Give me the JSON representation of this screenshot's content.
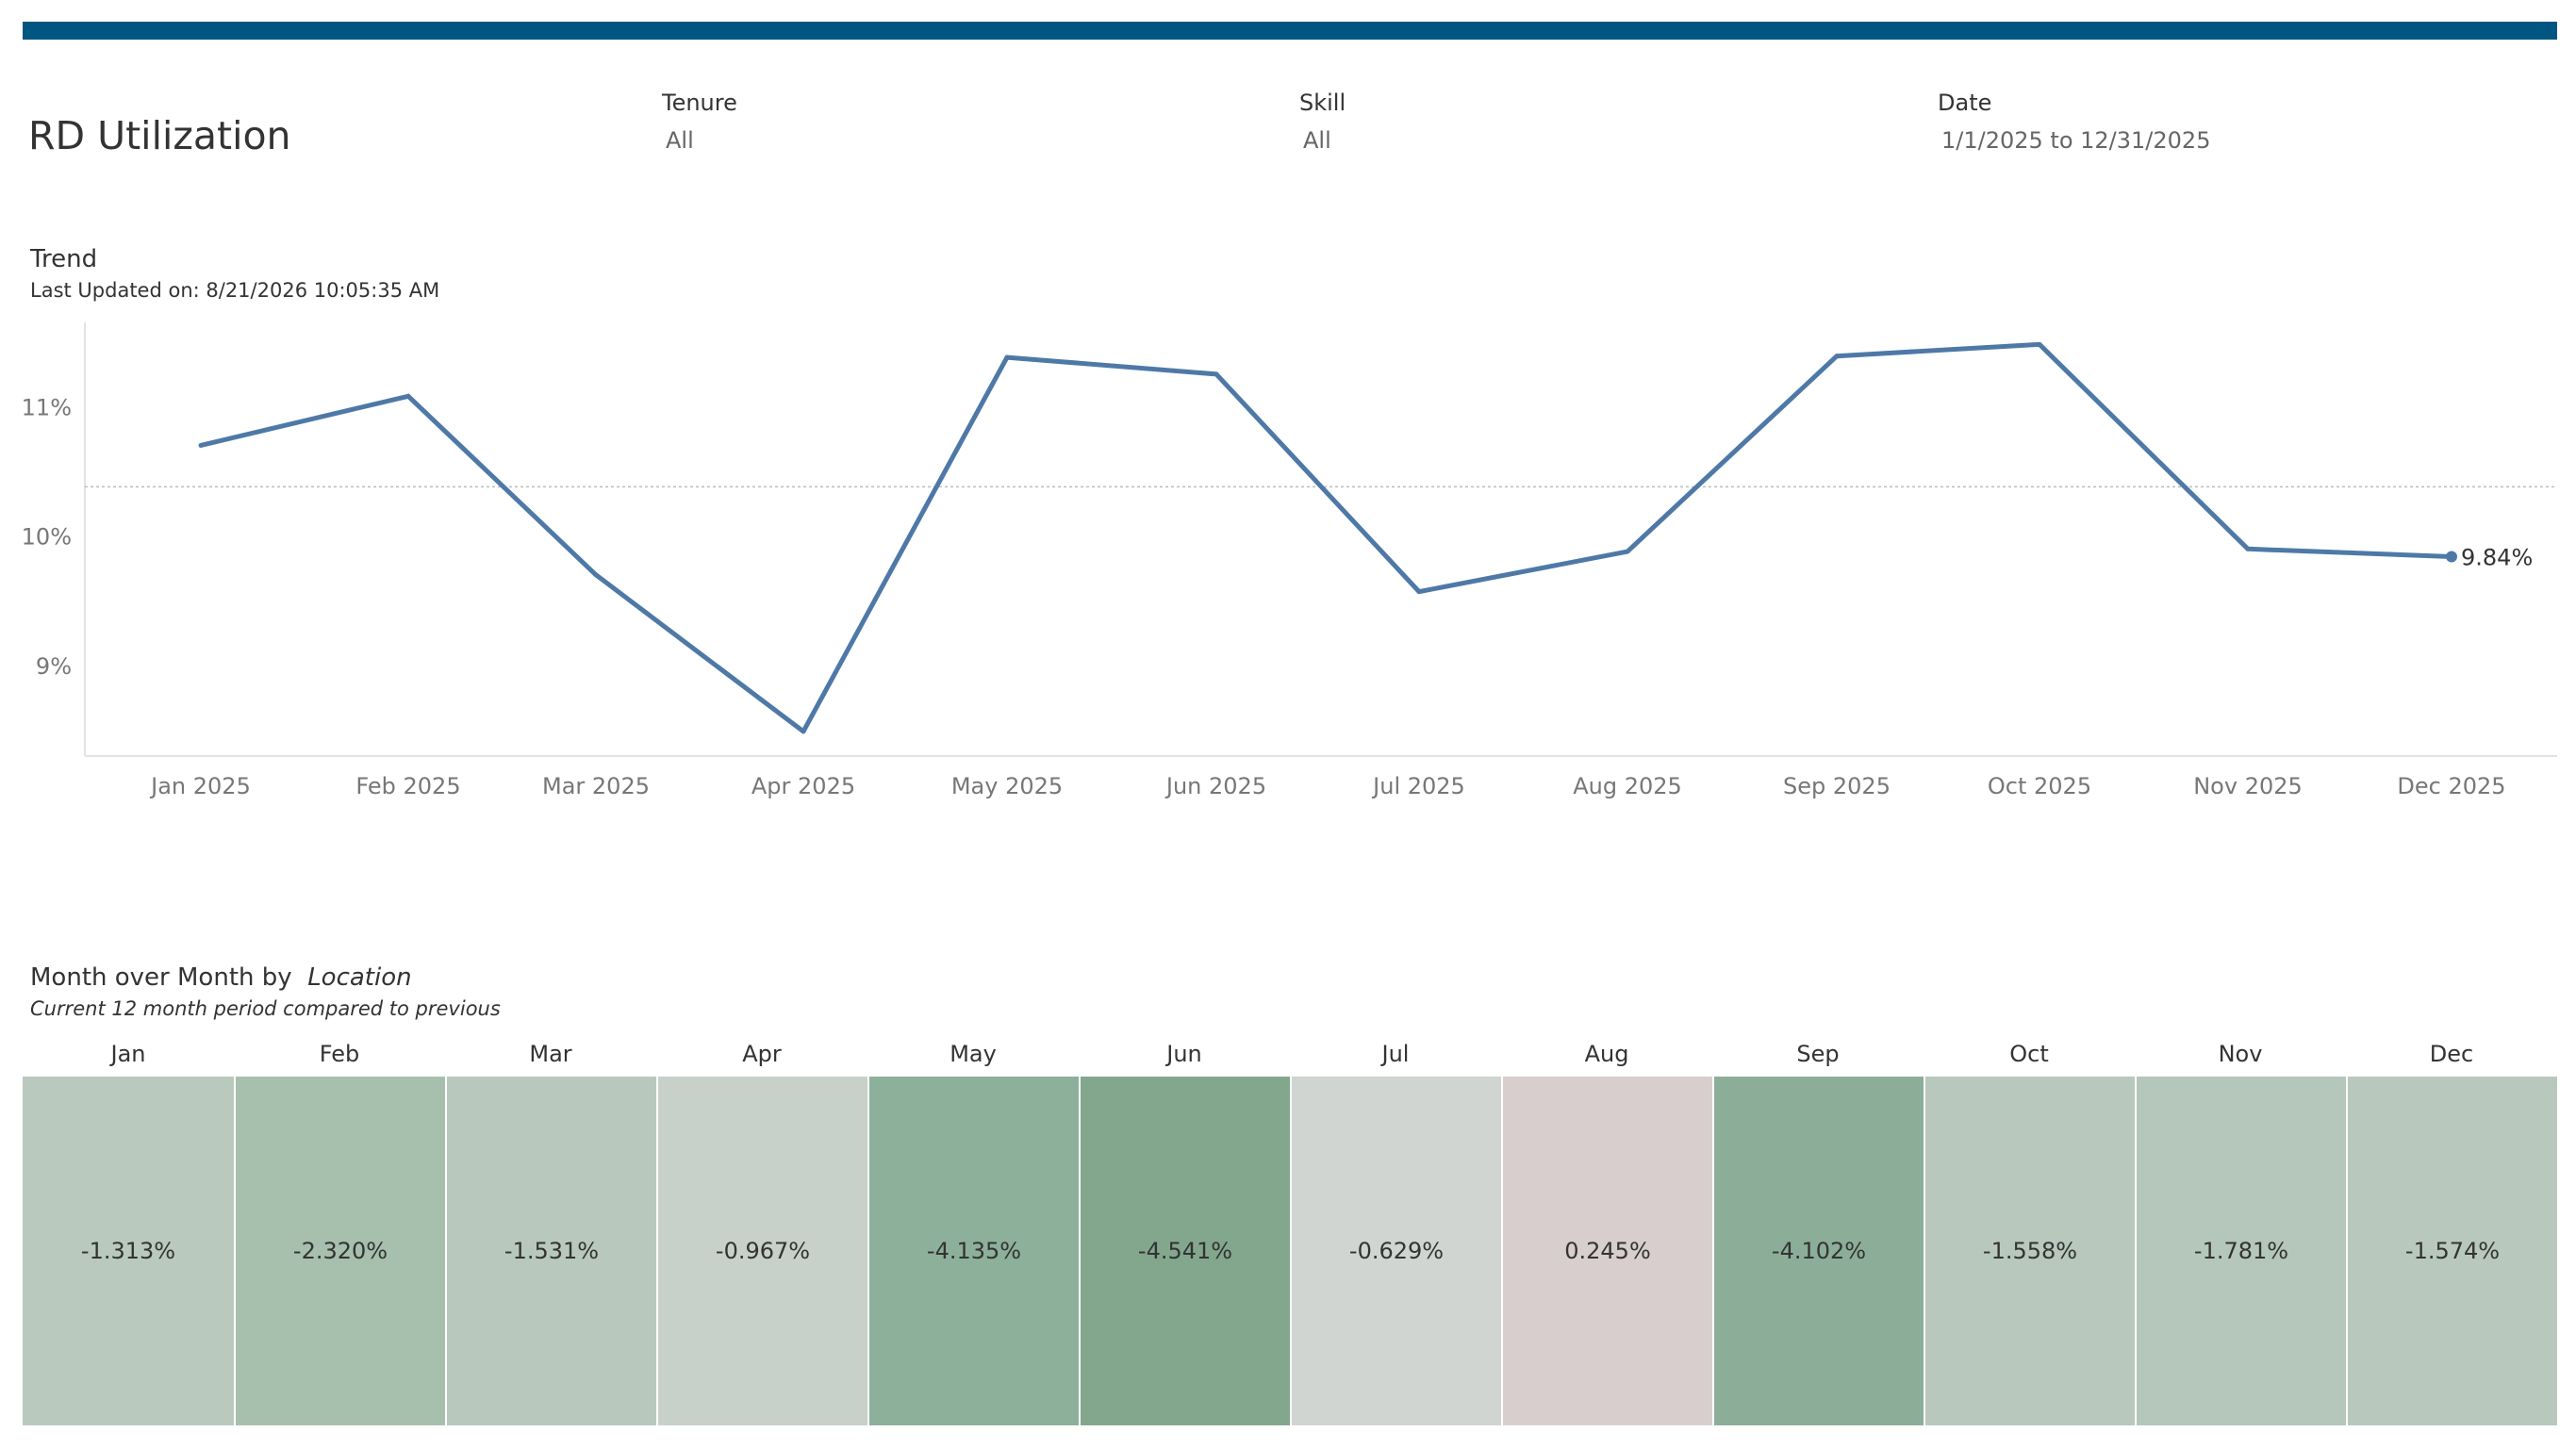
{
  "header": {
    "title": "RD Utilization",
    "accent_color": "#005581"
  },
  "filters": [
    {
      "label": "Tenure",
      "value": "All"
    },
    {
      "label": "Skill",
      "value": "All"
    },
    {
      "label": "Date",
      "value": "1/1/2025 to 12/31/2025"
    }
  ],
  "trend": {
    "title": "Trend",
    "subtitle": "Last Updated on: 8/21/2026 10:05:35 AM"
  },
  "mom": {
    "title_prefix": "Month over Month by",
    "title_dimension": "Location",
    "subtitle": "Current 12  month period compared to previous"
  },
  "chart_data": [
    {
      "type": "line",
      "x": [
        "Jan 2025",
        "Feb 2025",
        "Mar 2025",
        "Apr 2025",
        "May 2025",
        "Jun 2025",
        "Jul 2025",
        "Aug 2025",
        "Sep 2025",
        "Oct 2025",
        "Nov 2025",
        "Dec 2025"
      ],
      "series": [
        {
          "values": [
            10.7,
            11.08,
            9.7,
            8.49,
            11.38,
            11.25,
            9.57,
            9.88,
            11.39,
            11.48,
            9.9,
            9.84
          ],
          "color": "#4e79a7"
        }
      ],
      "yticks": [
        "11%",
        "10%",
        "9%"
      ],
      "ylim": [
        8.3,
        11.65
      ],
      "reference_line": 10.38,
      "end_label": "9.84%",
      "grid": false
    },
    {
      "type": "heatmap",
      "categories": [
        "Jan",
        "Feb",
        "Mar",
        "Apr",
        "May",
        "Jun",
        "Jul",
        "Aug",
        "Sep",
        "Oct",
        "Nov",
        "Dec"
      ],
      "values": [
        -1.313,
        -2.32,
        -1.531,
        -0.967,
        -4.135,
        -4.541,
        -0.629,
        0.245,
        -4.102,
        -1.558,
        -1.781,
        -1.574
      ],
      "labels": [
        "-1.313%",
        "-2.320%",
        "-1.531%",
        "-0.967%",
        "-4.135%",
        "-4.541%",
        "-0.629%",
        "0.245%",
        "-4.102%",
        "-1.558%",
        "-1.781%",
        "-1.574%"
      ],
      "colors": [
        "#b9c9be",
        "#a7bfad",
        "#b8c8bd",
        "#c7d1ca",
        "#8db09a",
        "#83a78d",
        "#d1d5d2",
        "#d8cece",
        "#8cae98",
        "#b8c8bd",
        "#b5c6ba",
        "#b8c8bd"
      ]
    }
  ]
}
